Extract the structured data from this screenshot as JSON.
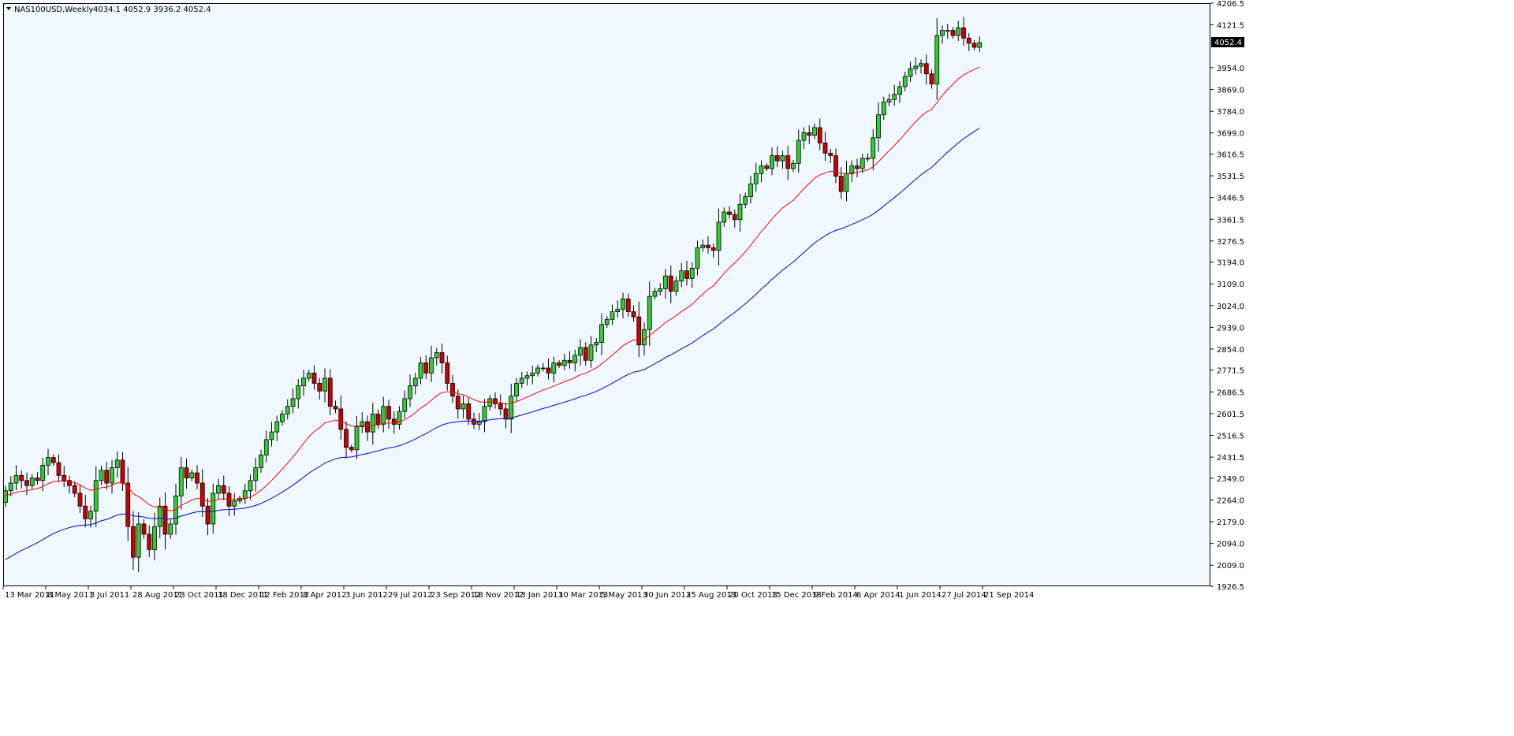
{
  "header": {
    "symbol": "NAS100USD,Weekly",
    "ohlc": "4034.1 4052.9 3936.2 4052.4"
  },
  "price_label": "4052.4",
  "colors": {
    "background": "#f0f8ff",
    "bull_fill": "#32cd32",
    "bear_fill": "#cc0000",
    "wick": "#000000",
    "ma_fast": "#ff0000",
    "ma_slow": "#0000cc",
    "axis": "#000000"
  },
  "chart_data": {
    "type": "candlestick",
    "title": "NAS100USD,Weekly",
    "ylim": [
      1926.5,
      4206.5
    ],
    "y_ticks": [
      "4206.5",
      "4121.5",
      "4052.4",
      "3954.0",
      "3869.0",
      "3784.0",
      "3699.0",
      "3616.5",
      "3531.5",
      "3446.5",
      "3361.5",
      "3276.5",
      "3194.0",
      "3109.0",
      "3024.0",
      "2939.0",
      "2854.0",
      "2771.5",
      "2686.5",
      "2601.5",
      "2516.5",
      "2431.5",
      "2349.0",
      "2264.0",
      "2179.0",
      "2094.0",
      "2009.0",
      "1926.5"
    ],
    "x_ticks": [
      "13 Mar 2011",
      "8 May 2011",
      "3 Jul 2011",
      "28 Aug 2011",
      "23 Oct 2011",
      "18 Dec 2011",
      "12 Feb 2012",
      "8 Apr 2012",
      "3 Jun 2012",
      "29 Jul 2012",
      "23 Sep 2012",
      "18 Nov 2012",
      "13 Jan 2013",
      "10 Mar 2013",
      "5 May 2013",
      "30 Jun 2013",
      "25 Aug 2013",
      "20 Oct 2013",
      "15 Dec 2013",
      "9 Feb 2014",
      "6 Apr 2014",
      "1 Jun 2014",
      "27 Jul 2014",
      "21 Sep 2014"
    ],
    "closes": [
      2300,
      2330,
      2360,
      2340,
      2320,
      2350,
      2340,
      2400,
      2430,
      2410,
      2360,
      2340,
      2320,
      2290,
      2240,
      2190,
      2220,
      2340,
      2380,
      2330,
      2390,
      2420,
      2330,
      2160,
      2040,
      2170,
      2130,
      2070,
      2160,
      2240,
      2130,
      2170,
      2280,
      2390,
      2350,
      2370,
      2330,
      2240,
      2170,
      2290,
      2320,
      2290,
      2240,
      2260,
      2270,
      2300,
      2340,
      2390,
      2440,
      2500,
      2530,
      2570,
      2600,
      2630,
      2660,
      2710,
      2740,
      2760,
      2720,
      2690,
      2740,
      2630,
      2620,
      2540,
      2470,
      2460,
      2550,
      2570,
      2530,
      2600,
      2560,
      2630,
      2580,
      2560,
      2610,
      2660,
      2710,
      2740,
      2800,
      2760,
      2820,
      2840,
      2800,
      2720,
      2670,
      2620,
      2640,
      2580,
      2560,
      2570,
      2630,
      2660,
      2640,
      2620,
      2580,
      2670,
      2720,
      2740,
      2750,
      2760,
      2780,
      2780,
      2760,
      2800,
      2790,
      2810,
      2800,
      2830,
      2860,
      2810,
      2870,
      2880,
      2950,
      2970,
      3000,
      3010,
      3050,
      3000,
      2980,
      2870,
      2930,
      3060,
      3080,
      3090,
      3140,
      3080,
      3120,
      3160,
      3130,
      3170,
      3250,
      3260,
      3250,
      3240,
      3350,
      3390,
      3380,
      3360,
      3420,
      3450,
      3500,
      3540,
      3570,
      3560,
      3610,
      3590,
      3610,
      3560,
      3580,
      3670,
      3700,
      3690,
      3720,
      3660,
      3620,
      3610,
      3530,
      3470,
      3540,
      3570,
      3560,
      3600,
      3600,
      3680,
      3770,
      3820,
      3830,
      3850,
      3880,
      3920,
      3950,
      3960,
      3970,
      3930,
      3890,
      4080,
      4100,
      4100,
      4080,
      4110,
      4070,
      4050,
      4034,
      4052
    ],
    "series": [
      {
        "name": "ma-fast"
      },
      {
        "name": "ma-slow"
      }
    ]
  }
}
